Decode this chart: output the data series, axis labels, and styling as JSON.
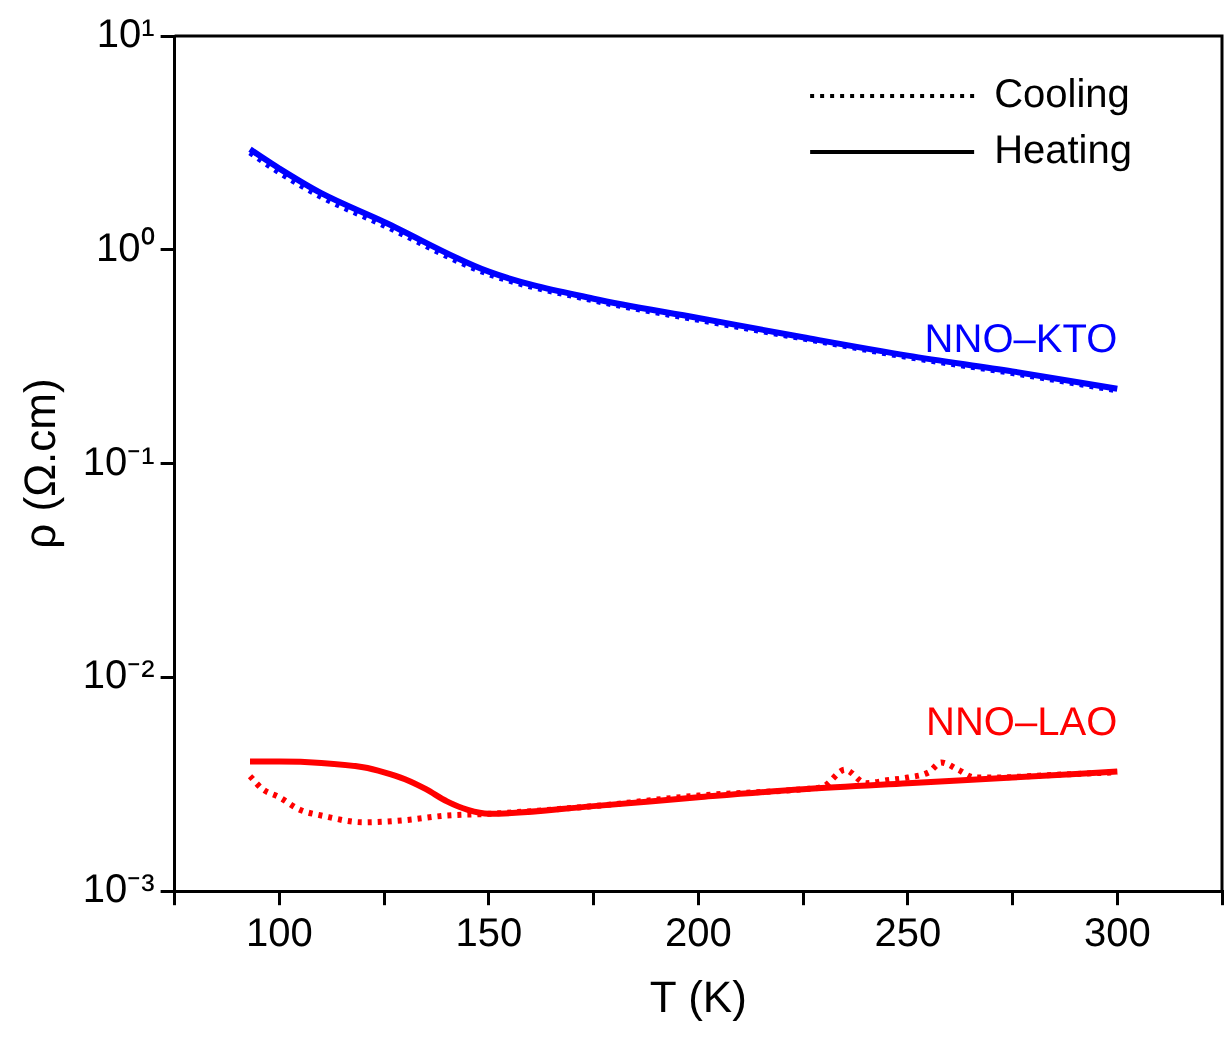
{
  "chart_data": {
    "type": "line",
    "xlabel": "T (K)",
    "ylabel": "ρ (Ω.cm)",
    "log": "y",
    "xlim": [
      75,
      325
    ],
    "xticks": [
      {
        "value": 75,
        "label": null
      },
      100,
      {
        "value": 125,
        "label": null
      },
      150,
      {
        "value": 175,
        "label": null
      },
      200,
      {
        "value": 225,
        "label": null
      },
      250,
      {
        "value": 275,
        "label": null
      },
      300,
      {
        "value": 325,
        "label": null
      }
    ],
    "ylim": [
      0.001,
      10
    ],
    "yticks": [
      {
        "value": 0.001,
        "label": "10⁻³"
      },
      {
        "value": 0.01,
        "label": "10⁻²"
      },
      {
        "value": 0.1,
        "label": "10⁻¹"
      },
      {
        "value": 1,
        "label": "10⁰"
      },
      {
        "value": 10,
        "label": "10¹"
      }
    ],
    "grid": false,
    "marker": "none",
    "series": [
      {
        "color": "#0000ff",
        "line_style": "dotted",
        "x": [
          93,
          100,
          110,
          125,
          150,
          175,
          200,
          225,
          250,
          275,
          300
        ],
        "values": [
          2.85,
          2.3,
          1.77,
          1.3,
          0.77,
          0.58,
          0.47,
          0.385,
          0.315,
          0.265,
          0.22
        ]
      },
      {
        "name": "NNO–KTO",
        "color": "#0000ff",
        "line_style": "solid",
        "x": [
          93,
          100,
          110,
          125,
          150,
          175,
          200,
          225,
          250,
          275,
          300
        ],
        "values": [
          2.95,
          2.4,
          1.84,
          1.35,
          0.79,
          0.59,
          0.48,
          0.39,
          0.32,
          0.27,
          0.224
        ]
      },
      {
        "color": "#ff0000",
        "line_style": "dotted",
        "x": [
          93,
          96,
          100,
          105,
          110,
          120,
          130,
          140,
          150,
          175,
          200,
          225,
          230,
          235,
          240,
          245,
          250,
          255,
          258,
          262,
          266,
          270,
          285,
          300
        ],
        "values": [
          0.00345,
          0.003,
          0.00275,
          0.0024,
          0.00226,
          0.0021,
          0.00215,
          0.00226,
          0.0023,
          0.0025,
          0.0028,
          0.003,
          0.0031,
          0.0037,
          0.0032,
          0.0033,
          0.0034,
          0.0036,
          0.004,
          0.0037,
          0.0034,
          0.0034,
          0.0035,
          0.0036
        ]
      },
      {
        "name": "NNO–LAO",
        "color": "#ff0000",
        "line_style": "solid",
        "x": [
          93,
          100,
          110,
          120,
          125,
          130,
          135,
          140,
          145,
          150,
          175,
          200,
          225,
          250,
          275,
          300
        ],
        "values": [
          0.00404,
          0.00404,
          0.00398,
          0.0038,
          0.0036,
          0.00334,
          0.003,
          0.00263,
          0.0024,
          0.0023,
          0.0025,
          0.00275,
          0.003,
          0.0032,
          0.0034,
          0.00363
        ]
      }
    ],
    "annotations": [
      "Cooling",
      "Heating"
    ]
  }
}
